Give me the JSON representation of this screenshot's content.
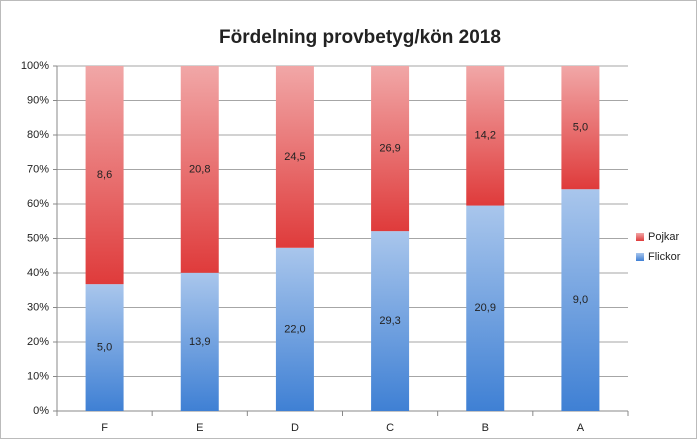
{
  "chart_data": {
    "type": "bar",
    "stack": "percent",
    "title": "Fördelning provbetyg/kön 2018",
    "categories": [
      "F",
      "E",
      "D",
      "C",
      "B",
      "A"
    ],
    "series": [
      {
        "name": "Flickor",
        "color": "#3f80d4",
        "values": [
          5.0,
          13.9,
          22.0,
          29.3,
          20.9,
          9.0
        ],
        "value_labels": [
          "5,0",
          "13,9",
          "22,0",
          "29,3",
          "20,9",
          "9,0"
        ]
      },
      {
        "name": "Pojkar",
        "color": "#df3b3b",
        "values": [
          8.6,
          20.8,
          24.5,
          26.9,
          14.2,
          5.0
        ],
        "value_labels": [
          "8,6",
          "20,8",
          "24,5",
          "26,9",
          "14,2",
          "5,0"
        ]
      }
    ],
    "ylim": [
      0,
      100
    ],
    "yticks": [
      {
        "value": 0,
        "label": "0%"
      },
      {
        "value": 10,
        "label": "10%"
      },
      {
        "value": 20,
        "label": "20%"
      },
      {
        "value": 30,
        "label": "30%"
      },
      {
        "value": 40,
        "label": "40%"
      },
      {
        "value": 50,
        "label": "50%"
      },
      {
        "value": 60,
        "label": "60%"
      },
      {
        "value": 70,
        "label": "70%"
      },
      {
        "value": 80,
        "label": "80%"
      },
      {
        "value": 90,
        "label": "90%"
      },
      {
        "value": 100,
        "label": "100%"
      }
    ],
    "grid": true,
    "legend": "right"
  }
}
